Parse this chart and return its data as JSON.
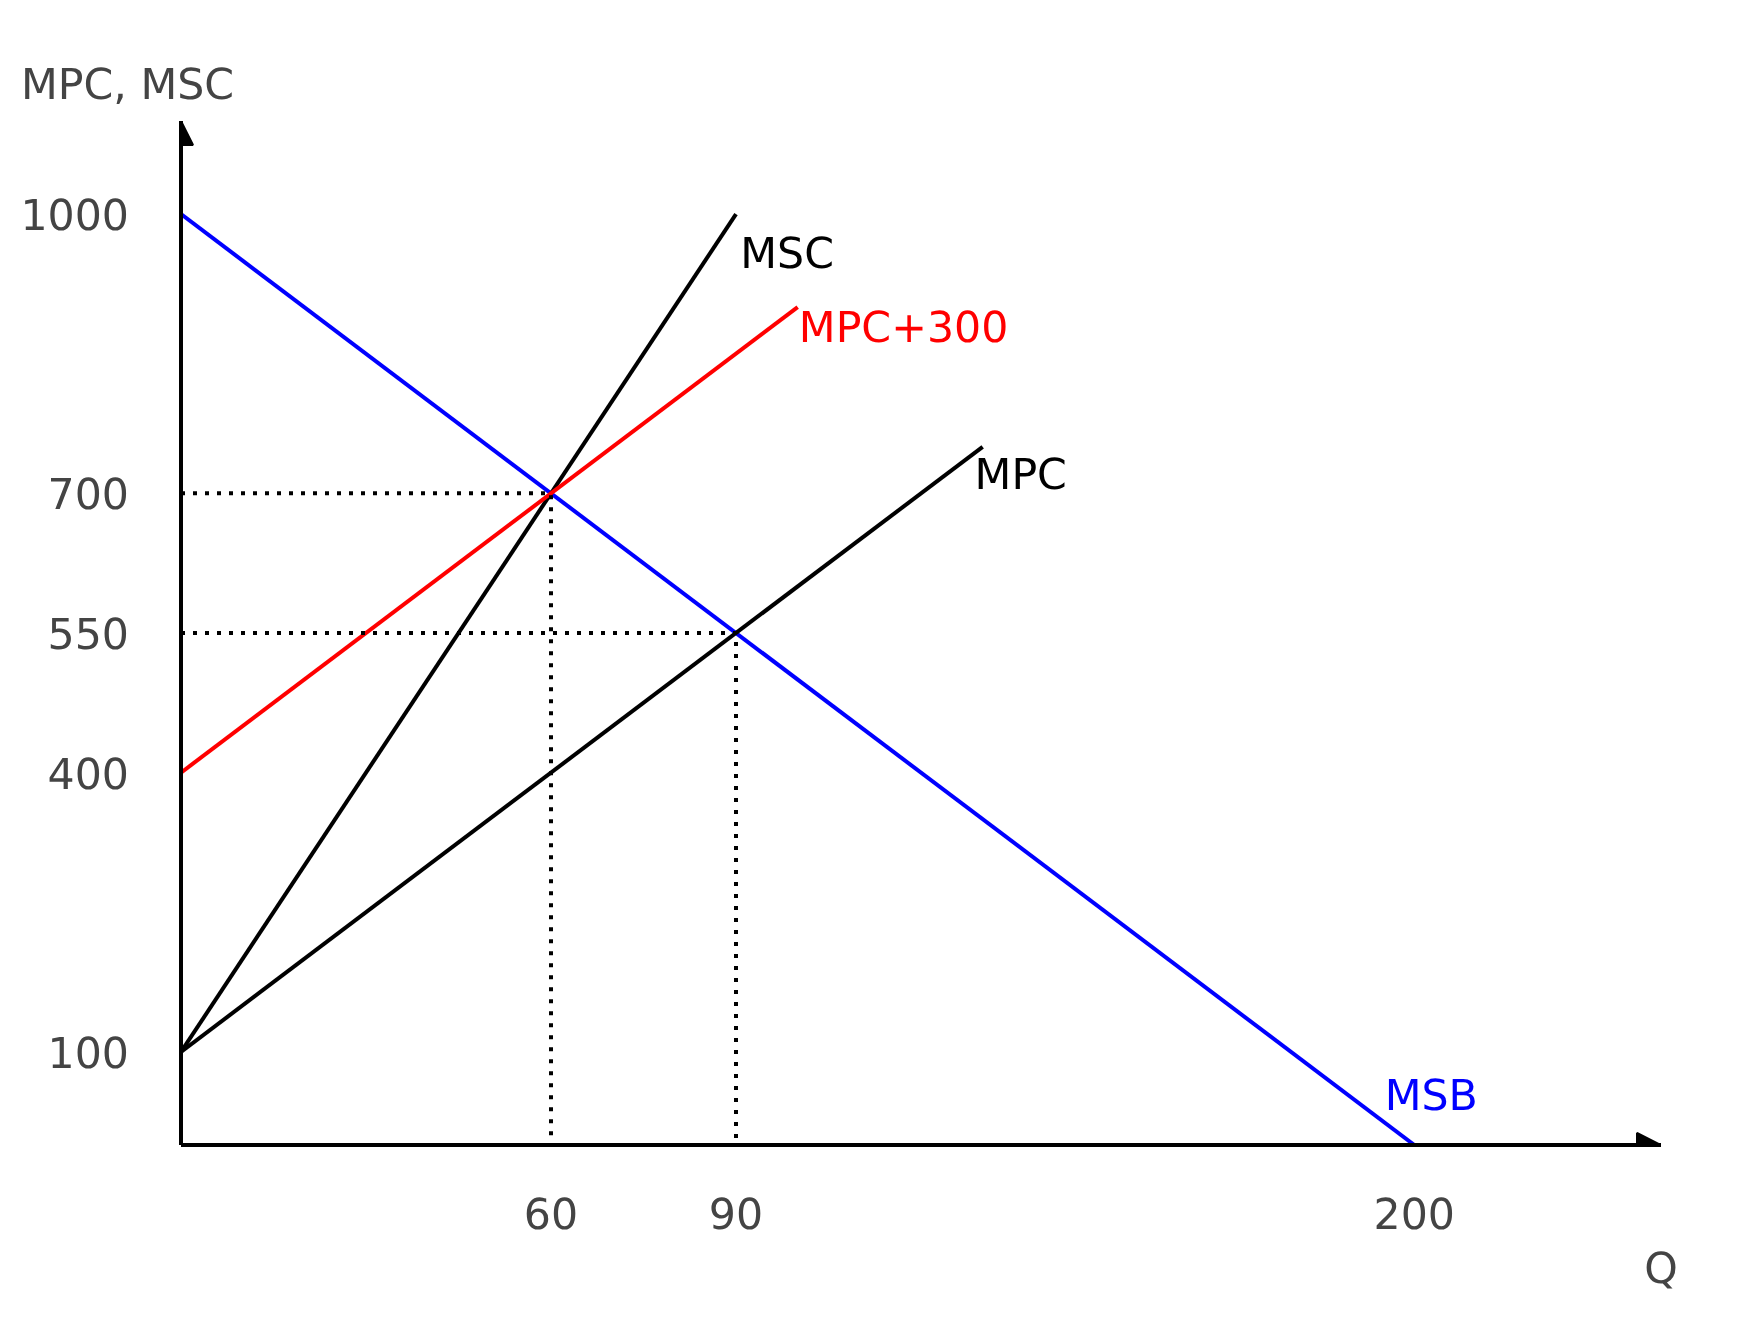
{
  "chart_data": {
    "type": "line",
    "xlabel": "Q",
    "ylabel": "MPC, MSC",
    "xlim": [
      0,
      240
    ],
    "ylim": [
      0,
      1100
    ],
    "xticks": [
      60,
      90,
      200
    ],
    "yticks": [
      100,
      400,
      550,
      700,
      1000
    ],
    "grid": false,
    "series": [
      {
        "name": "MSB",
        "color": "#0000ff",
        "x": [
          0,
          200
        ],
        "values": [
          1000,
          0
        ]
      },
      {
        "name": "MPC",
        "color": "#000000",
        "x": [
          0,
          130
        ],
        "values": [
          100,
          750
        ]
      },
      {
        "name": "MSC",
        "color": "#000000",
        "x": [
          0,
          90
        ],
        "values": [
          100,
          1000
        ]
      },
      {
        "name": "MPC+300",
        "color": "#ff0000",
        "x": [
          0,
          100
        ],
        "values": [
          400,
          900
        ]
      },
      {
        "color": "#000000",
        "x": [
          0,
          60,
          60
        ],
        "values": [
          700,
          700,
          0
        ],
        "line_style": "dotted"
      },
      {
        "color": "#000000",
        "x": [
          0,
          90,
          90
        ],
        "values": [
          550,
          550,
          0
        ],
        "line_style": "dotted"
      }
    ]
  }
}
